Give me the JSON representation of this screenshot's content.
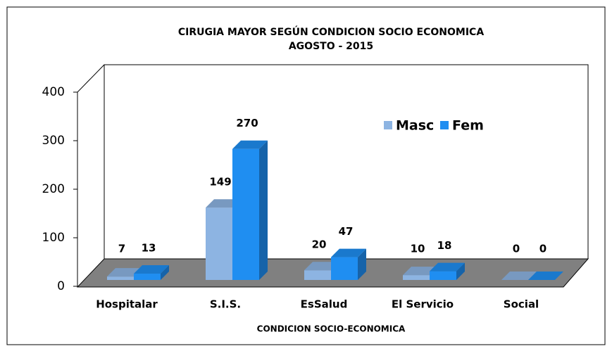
{
  "chart_data": {
    "type": "bar3d",
    "title": "CIRUGIA MAYOR SEGÚN CONDICION  SOCIO ECONOMICA",
    "subtitle": "AGOSTO - 2015",
    "x_label": "CONDICION SOCIO-ECONOMICA",
    "categories": [
      "Hospitalar",
      "S.I.S.",
      "EsSalud",
      "El Servicio",
      "Social"
    ],
    "series": [
      {
        "name": "Masc",
        "color": "#8db4e2",
        "values": [
          7,
          149,
          20,
          10,
          0
        ]
      },
      {
        "name": "Fem",
        "color": "#1f8ef1",
        "values": [
          13,
          270,
          47,
          18,
          0
        ]
      }
    ],
    "ylim": [
      0,
      400
    ],
    "yticks": [
      0,
      100,
      200,
      300,
      400
    ]
  }
}
